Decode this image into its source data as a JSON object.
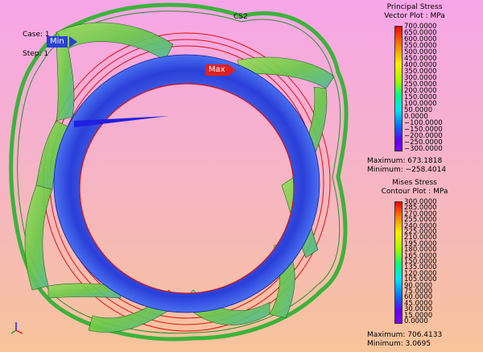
{
  "hud": {
    "case_label": "Case: 1",
    "step_label": "Step: 1",
    "cs_label": "CS2",
    "min_tag": "Min",
    "max_tag": "Max"
  },
  "principal_legend": {
    "title_line1": "Principal Stress",
    "title_line2": "Vector Plot : MPa",
    "ticks": [
      "700.0000",
      "650.0000",
      "600.0000",
      "550.0000",
      "500.0000",
      "450.0000",
      "400.0000",
      "350.0000",
      "300.0000",
      "250.0000",
      "200.0000",
      "150.0000",
      "100.0000",
      "50.0000",
      "0.0000",
      "−100.0000",
      "−150.0000",
      "−200.0000",
      "−250.0000",
      "−300.0000"
    ],
    "maximum": "Maximum: 673.1818",
    "minimum": "Minimum: −258.4014"
  },
  "mises_legend": {
    "title_line1": "Mises Stress",
    "title_line2": "Contour Plot : MPa",
    "ticks": [
      "300.0000",
      "285.0000",
      "270.0000",
      "255.0000",
      "240.0000",
      "225.0000",
      "210.0000",
      "195.0000",
      "180.0000",
      "165.0000",
      "150.0000",
      "135.0000",
      "120.0000",
      "105.0000",
      "90.0000",
      "75.0000",
      "60.0000",
      "45.0000",
      "30.0000",
      "15.0000",
      "0.0000"
    ],
    "maximum": "Maximum: 706.4133",
    "minimum": "Minimum: 3.0695"
  },
  "colors": {
    "ring_blue": "#2a3fd8",
    "strut_green": "#7ad04a",
    "wire_red": "#e01010",
    "outer_green": "#3bb33b"
  }
}
